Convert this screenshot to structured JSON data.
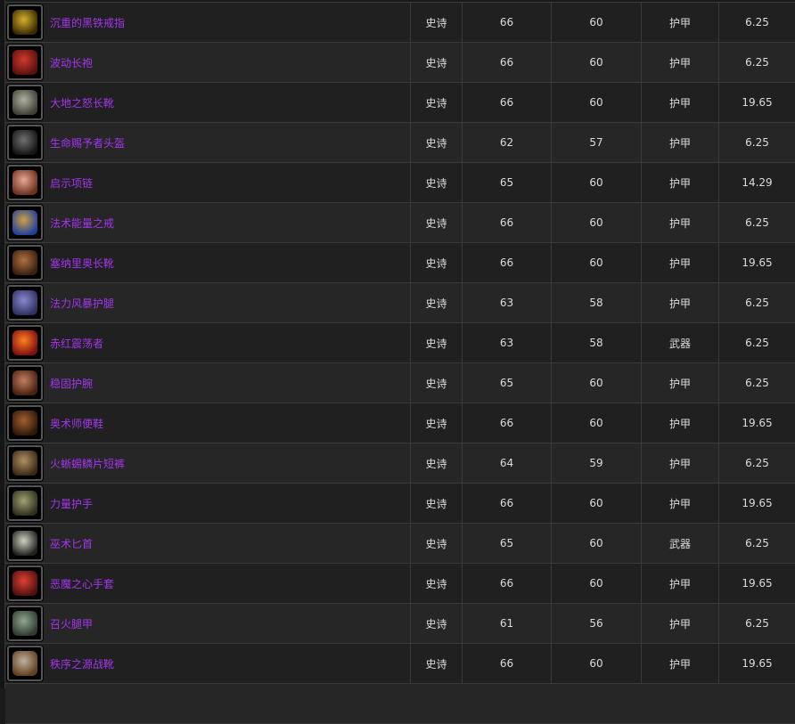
{
  "colors": {
    "epic": "#a335ee",
    "text": "#dcdcdc",
    "grid": "#3a3a3a"
  },
  "rows": [
    {
      "name": "沉重的黑铁戒指",
      "quality": "史诗",
      "item_level": "66",
      "req_level": "60",
      "slot": "护甲",
      "value": "6.25",
      "icon": "ring-icon",
      "c1": "#d4b030",
      "c2": "#3a2a00"
    },
    {
      "name": "波动长袍",
      "quality": "史诗",
      "item_level": "66",
      "req_level": "60",
      "slot": "护甲",
      "value": "6.25",
      "icon": "robe-icon",
      "c1": "#d03a2a",
      "c2": "#5a1010"
    },
    {
      "name": "大地之怒长靴",
      "quality": "史诗",
      "item_level": "66",
      "req_level": "60",
      "slot": "护甲",
      "value": "19.65",
      "icon": "boots-icon",
      "c1": "#b0b0a0",
      "c2": "#404038"
    },
    {
      "name": "生命赐予者头盔",
      "quality": "史诗",
      "item_level": "62",
      "req_level": "57",
      "slot": "护甲",
      "value": "6.25",
      "icon": "helmet-icon",
      "c1": "#707070",
      "c2": "#151515"
    },
    {
      "name": "启示项链",
      "quality": "史诗",
      "item_level": "65",
      "req_level": "60",
      "slot": "护甲",
      "value": "14.29",
      "icon": "necklace-icon",
      "c1": "#e8a890",
      "c2": "#6a3020"
    },
    {
      "name": "法术能量之戒",
      "quality": "史诗",
      "item_level": "66",
      "req_level": "60",
      "slot": "护甲",
      "value": "6.25",
      "icon": "ring-icon",
      "c1": "#d0a040",
      "c2": "#2040a0"
    },
    {
      "name": "塞纳里奥长靴",
      "quality": "史诗",
      "item_level": "66",
      "req_level": "60",
      "slot": "护甲",
      "value": "19.65",
      "icon": "boots-icon",
      "c1": "#b07040",
      "c2": "#3a2010"
    },
    {
      "name": "法力风暴护腿",
      "quality": "史诗",
      "item_level": "63",
      "req_level": "58",
      "slot": "护甲",
      "value": "6.25",
      "icon": "leggings-icon",
      "c1": "#8888d0",
      "c2": "#303060"
    },
    {
      "name": "赤红震荡者",
      "quality": "史诗",
      "item_level": "63",
      "req_level": "58",
      "slot": "武器",
      "value": "6.25",
      "icon": "weapon-icon",
      "c1": "#ff8020",
      "c2": "#801010"
    },
    {
      "name": "稳固护腕",
      "quality": "史诗",
      "item_level": "65",
      "req_level": "60",
      "slot": "护甲",
      "value": "6.25",
      "icon": "bracer-icon",
      "c1": "#c08060",
      "c2": "#4a2010"
    },
    {
      "name": "奥术师便鞋",
      "quality": "史诗",
      "item_level": "66",
      "req_level": "60",
      "slot": "护甲",
      "value": "19.65",
      "icon": "boots-icon",
      "c1": "#a06030",
      "c2": "#301808"
    },
    {
      "name": "火蜥蜴鳞片短裤",
      "quality": "史诗",
      "item_level": "64",
      "req_level": "59",
      "slot": "护甲",
      "value": "6.25",
      "icon": "leggings-icon",
      "c1": "#b09060",
      "c2": "#3a2a18"
    },
    {
      "name": "力量护手",
      "quality": "史诗",
      "item_level": "66",
      "req_level": "60",
      "slot": "护甲",
      "value": "19.65",
      "icon": "gauntlets-icon",
      "c1": "#a0a070",
      "c2": "#303020"
    },
    {
      "name": "巫术匕首",
      "quality": "史诗",
      "item_level": "65",
      "req_level": "60",
      "slot": "武器",
      "value": "6.25",
      "icon": "dagger-icon",
      "c1": "#d0d0c0",
      "c2": "#202020"
    },
    {
      "name": "恶魔之心手套",
      "quality": "史诗",
      "item_level": "66",
      "req_level": "60",
      "slot": "护甲",
      "value": "19.65",
      "icon": "gloves-icon",
      "c1": "#e04030",
      "c2": "#501010"
    },
    {
      "name": "召火腿甲",
      "quality": "史诗",
      "item_level": "61",
      "req_level": "56",
      "slot": "护甲",
      "value": "6.25",
      "icon": "leggings-icon",
      "c1": "#90a890",
      "c2": "#303a30"
    },
    {
      "name": "秩序之源战靴",
      "quality": "史诗",
      "item_level": "66",
      "req_level": "60",
      "slot": "护甲",
      "value": "19.65",
      "icon": "boots-icon",
      "c1": "#c0b0a0",
      "c2": "#604020"
    }
  ]
}
